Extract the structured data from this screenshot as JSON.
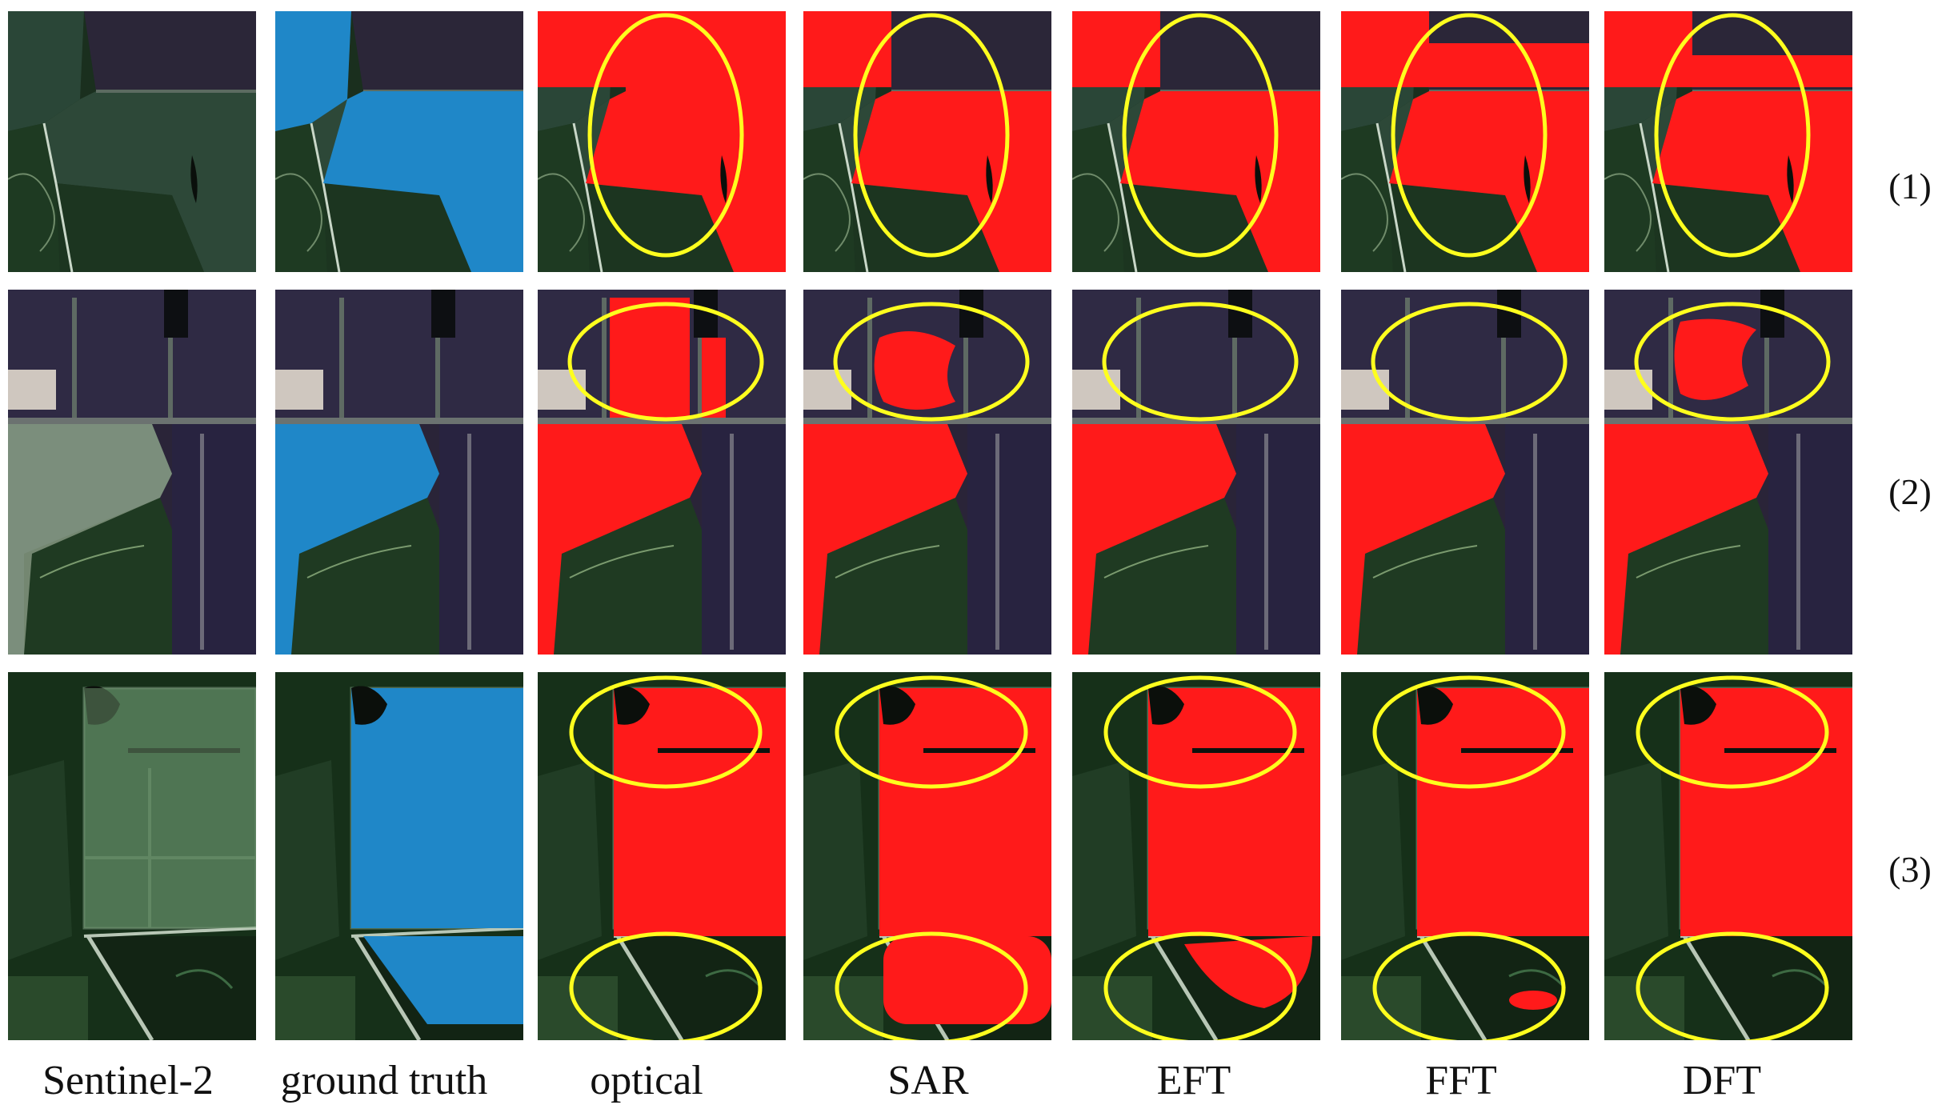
{
  "columns": [
    {
      "label": "Sentinel-2"
    },
    {
      "label": "ground truth"
    },
    {
      "label": "optical"
    },
    {
      "label": "SAR"
    },
    {
      "label": "EFT"
    },
    {
      "label": "FFT"
    },
    {
      "label": "DFT"
    }
  ],
  "rows": [
    {
      "label": "(1)"
    },
    {
      "label": "(2)"
    },
    {
      "label": "(3)"
    }
  ],
  "colors": {
    "ground_truth": "#1f87c8",
    "prediction": "#ff1a1a",
    "highlight": "#ffff1e",
    "background": "#ffffff"
  }
}
